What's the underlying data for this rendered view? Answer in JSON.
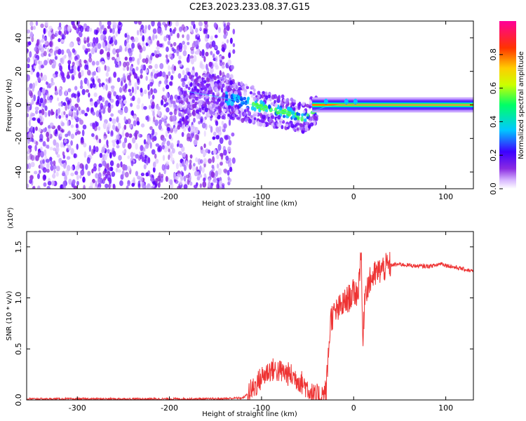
{
  "title": "C2E3.2023.233.08.37.G15",
  "chart_data": [
    {
      "type": "heatmap",
      "xlabel": "Height of straight line (km)",
      "ylabel": "Frequency (Hz)",
      "xlim": [
        -355,
        130
      ],
      "ylim": [
        -50,
        50
      ],
      "xticks": [
        -300,
        -200,
        -100,
        0,
        100
      ],
      "xtick_labels": [
        "-300",
        "-200",
        "-100",
        "0",
        "100"
      ],
      "yticks": [
        -40,
        -20,
        0,
        20,
        40
      ],
      "ytick_labels": [
        "-40",
        "-20",
        "0",
        "20",
        "40"
      ],
      "colorbar": {
        "label": "Normalized spectral amplitude",
        "range": [
          0,
          1
        ],
        "ticks": [
          0.0,
          0.2,
          0.4,
          0.6,
          0.8
        ],
        "tick_labels": [
          "0.0",
          "0.2",
          "0.4",
          "0.6",
          "0.8"
        ],
        "colors": [
          "#ffffff",
          "#d8b8ff",
          "#8a2be2",
          "#4b00ff",
          "#00bfff",
          "#00ff80",
          "#ffff00",
          "#ff8000",
          "#ff0000",
          "#ff00aa"
        ]
      },
      "signal_trace": {
        "x": [
          -180,
          -150,
          -130,
          -110,
          -90,
          -70,
          -55,
          -45,
          -30,
          -15,
          0,
          20,
          60,
          100,
          130
        ],
        "y": [
          8,
          5,
          3,
          0,
          -3,
          -5,
          -8,
          -4,
          -1,
          0,
          0,
          0,
          0,
          0,
          0
        ]
      },
      "noise_region": [
        -355,
        -130
      ]
    },
    {
      "type": "line",
      "xlabel": "Height of straight line (km)",
      "ylabel": "SNR (10 * v/v)",
      "y_multiplier": "(x10⁴)",
      "xlim": [
        -355,
        130
      ],
      "ylim": [
        0,
        1.65
      ],
      "xticks": [
        -300,
        -200,
        -100,
        0,
        100
      ],
      "xtick_labels": [
        "-300",
        "-200",
        "-100",
        "0",
        "100"
      ],
      "yticks": [
        0.0,
        0.5,
        1.0,
        1.5
      ],
      "ytick_labels": [
        "0.0",
        "0.5",
        "1.0",
        "1.5"
      ],
      "series": [
        {
          "color": "#ee3333",
          "x": [
            -355,
            -300,
            -250,
            -200,
            -150,
            -120,
            -110,
            -100,
            -90,
            -80,
            -70,
            -60,
            -50,
            -45,
            -40,
            -35,
            -30,
            -27,
            -25,
            -20,
            -15,
            -10,
            -5,
            0,
            5,
            8,
            10,
            12,
            15,
            20,
            30,
            40,
            50,
            60,
            70,
            80,
            90,
            95,
            100,
            110,
            120,
            130
          ],
          "y": [
            0.01,
            0.01,
            0.01,
            0.01,
            0.01,
            0.02,
            0.1,
            0.22,
            0.3,
            0.28,
            0.25,
            0.2,
            0.12,
            0.05,
            0.02,
            0.03,
            0.08,
            0.5,
            0.8,
            0.85,
            0.9,
            0.95,
            1.0,
            1.05,
            1.05,
            1.5,
            0.5,
            1.05,
            1.12,
            1.2,
            1.28,
            1.32,
            1.33,
            1.32,
            1.31,
            1.31,
            1.32,
            1.34,
            1.32,
            1.3,
            1.28,
            1.26
          ]
        }
      ]
    }
  ]
}
